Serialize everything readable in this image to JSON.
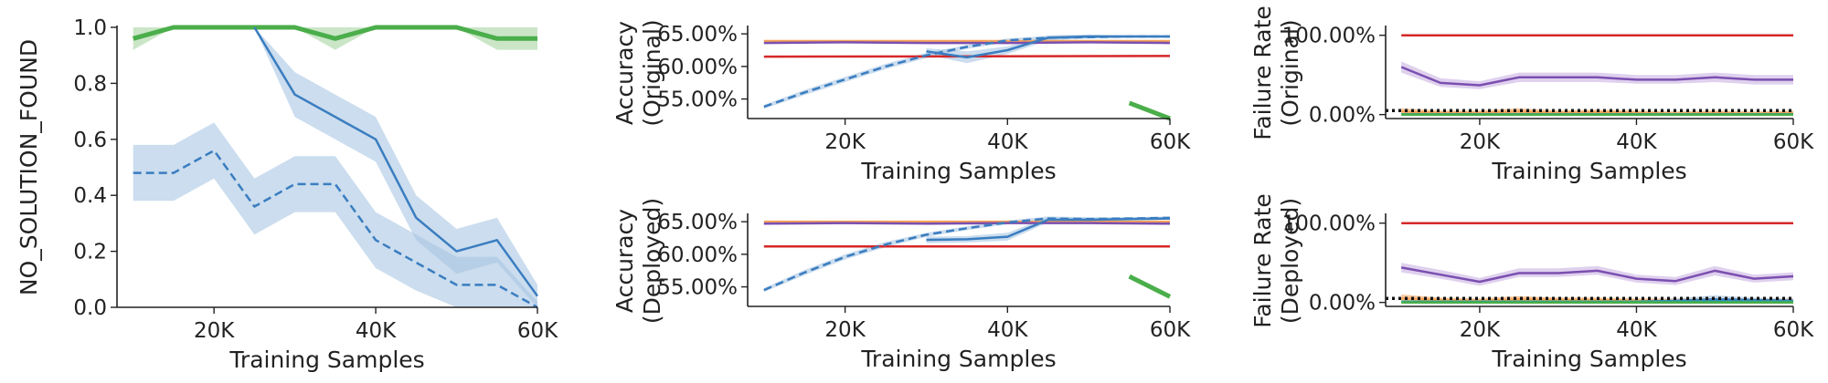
{
  "figure": {
    "background": "#ffffff"
  },
  "colors": {
    "blue": "#3a7dc0",
    "blue_band": "#a9c6e3",
    "green": "#4aae4a",
    "green_band": "#a6d6a1",
    "red": "#d62728",
    "purple": "#7b4fb0",
    "purple_band": "#c9b2e3",
    "orange": "#f4a259",
    "teal": "#2aa198"
  },
  "chart_data": [
    {
      "id": "p1",
      "type": "line",
      "xlabel": "Training Samples",
      "ylabel": "NO_SOLUTION_FOUND",
      "xlim": [
        8000,
        60000
      ],
      "ylim": [
        0,
        1.0
      ],
      "xticks": [
        20000,
        40000,
        60000
      ],
      "xtick_labels": [
        "20K",
        "40K",
        "60K"
      ],
      "yticks": [
        0,
        0.2,
        0.4,
        0.6,
        0.8,
        1.0
      ],
      "ytick_labels": [
        "0.0",
        "0.2",
        "0.4",
        "0.6",
        "0.8",
        "1.0"
      ],
      "series": [
        {
          "color_key": "green",
          "dash": "solid",
          "width": 5,
          "x": [
            10000,
            15000,
            20000,
            25000,
            30000,
            35000,
            40000,
            45000,
            50000,
            55000,
            60000
          ],
          "y": [
            0.96,
            1.0,
            1.0,
            1.0,
            1.0,
            0.96,
            1.0,
            1.0,
            1.0,
            0.96,
            0.96
          ],
          "band_lo": [
            0.92,
            1.0,
            1.0,
            1.0,
            1.0,
            0.92,
            1.0,
            1.0,
            1.0,
            0.92,
            0.92
          ],
          "band_hi": [
            1.0,
            1.0,
            1.0,
            1.0,
            1.0,
            1.0,
            1.0,
            1.0,
            1.0,
            1.0,
            1.0
          ]
        },
        {
          "color_key": "blue",
          "dash": "solid",
          "width": 2.5,
          "x": [
            25000,
            30000,
            35000,
            40000,
            45000,
            50000,
            55000,
            60000
          ],
          "y": [
            1.0,
            0.76,
            0.68,
            0.6,
            0.32,
            0.2,
            0.24,
            0.04
          ],
          "band_lo": [
            1.0,
            0.68,
            0.6,
            0.52,
            0.24,
            0.12,
            0.16,
            0.0
          ],
          "band_hi": [
            1.0,
            0.84,
            0.76,
            0.68,
            0.4,
            0.28,
            0.32,
            0.08
          ]
        },
        {
          "color_key": "blue",
          "dash": "dashed",
          "width": 2.5,
          "x": [
            10000,
            15000,
            20000,
            25000,
            30000,
            35000,
            40000,
            45000,
            50000,
            55000,
            60000
          ],
          "y": [
            0.48,
            0.48,
            0.56,
            0.36,
            0.44,
            0.44,
            0.24,
            0.16,
            0.08,
            0.08,
            0.0
          ],
          "band_lo": [
            0.38,
            0.38,
            0.46,
            0.26,
            0.34,
            0.34,
            0.14,
            0.06,
            0.0,
            0.0,
            0.0
          ],
          "band_hi": [
            0.58,
            0.58,
            0.66,
            0.46,
            0.54,
            0.54,
            0.34,
            0.26,
            0.18,
            0.18,
            0.02
          ]
        }
      ]
    },
    {
      "id": "p2",
      "type": "line",
      "xlabel": "Training Samples",
      "ylabel_lines": [
        "Accuracy",
        "(Original)"
      ],
      "xlim": [
        8000,
        60000
      ],
      "ylim": [
        52,
        66
      ],
      "xticks": [
        20000,
        40000,
        60000
      ],
      "xtick_labels": [
        "20K",
        "40K",
        "60K"
      ],
      "yticks": [
        55,
        60,
        65
      ],
      "ytick_labels": [
        "55.00%",
        "60.00%",
        "65.00%"
      ],
      "series": [
        {
          "color_key": "red",
          "dash": "solid",
          "width": 2.5,
          "x": [
            10000,
            60000
          ],
          "y": [
            61.5,
            61.6
          ]
        },
        {
          "color_key": "orange",
          "dash": "solid",
          "width": 2.5,
          "x": [
            10000,
            60000
          ],
          "y": [
            63.9,
            63.9
          ]
        },
        {
          "color_key": "purple",
          "dash": "solid",
          "width": 2.5,
          "x": [
            10000,
            20000,
            30000,
            40000,
            50000,
            60000
          ],
          "y": [
            63.6,
            63.7,
            63.6,
            63.6,
            63.7,
            63.6
          ]
        },
        {
          "color_key": "blue",
          "dash": "dashed",
          "width": 2.5,
          "x": [
            10000,
            15000,
            20000,
            25000,
            30000,
            35000,
            40000,
            45000,
            50000,
            55000,
            60000
          ],
          "y": [
            53.8,
            56.0,
            58.0,
            60.0,
            61.7,
            63.0,
            64.0,
            64.4,
            64.5,
            64.6,
            64.6
          ],
          "band_lo": [
            53.5,
            55.6,
            57.6,
            59.6,
            61.3,
            62.7,
            63.7,
            64.1,
            64.3,
            64.4,
            64.4
          ],
          "band_hi": [
            54.1,
            56.4,
            58.4,
            60.4,
            62.1,
            63.3,
            64.3,
            64.7,
            64.7,
            64.8,
            64.8
          ]
        },
        {
          "color_key": "blue",
          "dash": "solid",
          "width": 2.5,
          "x": [
            30000,
            35000,
            40000,
            45000,
            50000,
            55000,
            60000
          ],
          "y": [
            62.3,
            61.4,
            62.5,
            64.4,
            64.6,
            64.6,
            64.6
          ],
          "band_lo": [
            61.8,
            60.5,
            61.9,
            64.0,
            64.3,
            64.4,
            64.4
          ],
          "band_hi": [
            62.8,
            62.3,
            63.1,
            64.8,
            64.9,
            64.8,
            64.8
          ]
        },
        {
          "color_key": "green",
          "dash": "solid",
          "width": 5,
          "x": [
            55000,
            60000
          ],
          "y": [
            54.4,
            52.0
          ]
        }
      ]
    },
    {
      "id": "p3",
      "type": "line",
      "xlabel": "Training Samples",
      "ylabel_lines": [
        "Failure Rate",
        "(Original)"
      ],
      "xlim": [
        8000,
        60000
      ],
      "ylim": [
        -5,
        110
      ],
      "xticks": [
        20000,
        40000,
        60000
      ],
      "xtick_labels": [
        "20K",
        "40K",
        "60K"
      ],
      "yticks": [
        0,
        100
      ],
      "ytick_labels": [
        "0.00%",
        "100.00%"
      ],
      "series": [
        {
          "color_key": "red",
          "dash": "solid",
          "width": 2.5,
          "x": [
            10000,
            60000
          ],
          "y": [
            100,
            100
          ]
        },
        {
          "color_key": "purple",
          "dash": "solid",
          "width": 2.5,
          "x": [
            10000,
            15000,
            20000,
            25000,
            30000,
            35000,
            40000,
            45000,
            50000,
            55000,
            60000
          ],
          "y": [
            60,
            40,
            37,
            47,
            47,
            47,
            44,
            44,
            47,
            44,
            44
          ],
          "band_lo": [
            53,
            35,
            32,
            41,
            41,
            41,
            39,
            39,
            41,
            38,
            38
          ],
          "band_hi": [
            67,
            46,
            42,
            53,
            53,
            53,
            50,
            50,
            53,
            50,
            50
          ]
        },
        {
          "color_key": "orange",
          "dash": "solid",
          "width": 2.5,
          "x": [
            10000,
            15000,
            20000,
            25000,
            30000,
            35000,
            40000,
            45000,
            50000,
            55000,
            60000
          ],
          "y": [
            4,
            2,
            2,
            4,
            2,
            3,
            2,
            1,
            2,
            1,
            2
          ],
          "band_lo": [
            1,
            0,
            0,
            1,
            0,
            0,
            0,
            0,
            0,
            0,
            0
          ],
          "band_hi": [
            8,
            5,
            5,
            8,
            5,
            6,
            5,
            4,
            5,
            4,
            5
          ]
        },
        {
          "color_key": "teal",
          "dash": "solid",
          "width": 2.5,
          "x": [
            10000,
            20000,
            30000,
            40000,
            50000,
            60000
          ],
          "y": [
            0.5,
            0.5,
            0.5,
            0.5,
            0.5,
            0.5
          ]
        },
        {
          "color_key": "green",
          "dash": "solid",
          "width": 2.5,
          "x": [
            10000,
            20000,
            30000,
            40000,
            50000,
            60000
          ],
          "y": [
            0,
            0,
            0,
            0,
            0,
            0
          ]
        },
        {
          "color_key": "black",
          "dash": "dotted",
          "width": 3.5,
          "x": [
            8000,
            60000
          ],
          "y": [
            5,
            5
          ]
        }
      ]
    },
    {
      "id": "p4",
      "type": "line",
      "xlabel": "Training Samples",
      "ylabel_lines": [
        "Accuracy",
        "(Deployed)"
      ],
      "xlim": [
        8000,
        60000
      ],
      "ylim": [
        52,
        66
      ],
      "xticks": [
        20000,
        40000,
        60000
      ],
      "xtick_labels": [
        "20K",
        "40K",
        "60K"
      ],
      "yticks": [
        55,
        60,
        65
      ],
      "ytick_labels": [
        "55.00%",
        "60.00%",
        "65.00%"
      ],
      "series": [
        {
          "color_key": "red",
          "dash": "solid",
          "width": 2.5,
          "x": [
            10000,
            60000
          ],
          "y": [
            61.2,
            61.2
          ]
        },
        {
          "color_key": "orange",
          "dash": "solid",
          "width": 2.5,
          "x": [
            10000,
            60000
          ],
          "y": [
            65.0,
            65.0
          ]
        },
        {
          "color_key": "purple",
          "dash": "solid",
          "width": 2.5,
          "x": [
            10000,
            20000,
            30000,
            40000,
            50000,
            60000
          ],
          "y": [
            64.7,
            64.8,
            64.7,
            64.8,
            64.8,
            64.7
          ]
        },
        {
          "color_key": "blue",
          "dash": "dashed",
          "width": 2.5,
          "x": [
            10000,
            15000,
            20000,
            25000,
            30000,
            35000,
            40000,
            45000,
            50000,
            55000,
            60000
          ],
          "y": [
            54.5,
            57.2,
            59.6,
            61.5,
            63.0,
            64.0,
            64.9,
            65.5,
            65.4,
            65.5,
            65.6
          ],
          "band_lo": [
            54.2,
            56.8,
            59.2,
            61.1,
            62.7,
            63.7,
            64.6,
            65.2,
            65.1,
            65.3,
            65.4
          ],
          "band_hi": [
            54.8,
            57.6,
            60.0,
            61.9,
            63.3,
            64.3,
            65.2,
            65.8,
            65.7,
            65.7,
            65.8
          ]
        },
        {
          "color_key": "blue",
          "dash": "solid",
          "width": 2.5,
          "x": [
            30000,
            35000,
            40000,
            45000,
            50000,
            55000,
            60000
          ],
          "y": [
            62.2,
            62.3,
            62.7,
            65.3,
            65.3,
            65.4,
            65.5
          ],
          "band_lo": [
            61.7,
            61.8,
            62.1,
            64.9,
            65.0,
            65.2,
            65.3
          ],
          "band_hi": [
            62.7,
            62.8,
            63.3,
            65.7,
            65.6,
            65.6,
            65.7
          ]
        },
        {
          "color_key": "green",
          "dash": "solid",
          "width": 5,
          "x": [
            55000,
            60000
          ],
          "y": [
            56.6,
            53.5
          ]
        }
      ]
    },
    {
      "id": "p5",
      "type": "line",
      "xlabel": "Training Samples",
      "ylabel_lines": [
        "Failure Rate",
        "(Deployed)"
      ],
      "xlim": [
        8000,
        60000
      ],
      "ylim": [
        -5,
        110
      ],
      "xticks": [
        20000,
        40000,
        60000
      ],
      "xtick_labels": [
        "20K",
        "40K",
        "60K"
      ],
      "yticks": [
        0,
        100
      ],
      "ytick_labels": [
        "0.00%",
        "100.00%"
      ],
      "series": [
        {
          "color_key": "red",
          "dash": "solid",
          "width": 2.5,
          "x": [
            10000,
            60000
          ],
          "y": [
            100,
            100
          ]
        },
        {
          "color_key": "purple",
          "dash": "solid",
          "width": 2.5,
          "x": [
            10000,
            15000,
            20000,
            25000,
            30000,
            35000,
            40000,
            45000,
            50000,
            55000,
            60000
          ],
          "y": [
            44,
            35,
            26,
            37,
            37,
            40,
            30,
            27,
            40,
            30,
            33
          ],
          "band_lo": [
            38,
            30,
            21,
            32,
            32,
            35,
            25,
            22,
            34,
            25,
            28
          ],
          "band_hi": [
            50,
            41,
            31,
            43,
            43,
            46,
            35,
            32,
            46,
            35,
            38
          ]
        },
        {
          "color_key": "orange",
          "dash": "solid",
          "width": 2.5,
          "x": [
            10000,
            15000,
            20000,
            25000,
            30000,
            35000,
            40000,
            45000,
            50000,
            55000,
            60000
          ],
          "y": [
            5,
            3,
            2,
            4,
            3,
            3,
            2,
            2,
            3,
            2,
            2
          ],
          "band_lo": [
            1,
            0,
            0,
            1,
            0,
            0,
            0,
            0,
            0,
            0,
            0
          ],
          "band_hi": [
            10,
            6,
            5,
            8,
            6,
            6,
            5,
            5,
            6,
            5,
            5
          ]
        },
        {
          "color_key": "blue",
          "dash": "solid",
          "width": 2.5,
          "x": [
            40000,
            45000,
            50000,
            55000,
            60000
          ],
          "y": [
            1,
            2,
            4,
            3,
            2
          ],
          "band_lo": [
            0,
            0,
            1,
            0,
            0
          ],
          "band_hi": [
            3,
            5,
            9,
            6,
            5
          ]
        },
        {
          "color_key": "teal",
          "dash": "solid",
          "width": 2.5,
          "x": [
            10000,
            20000,
            30000,
            40000,
            50000,
            60000
          ],
          "y": [
            1,
            1,
            1,
            1,
            1,
            1
          ]
        },
        {
          "color_key": "green",
          "dash": "solid",
          "width": 2.5,
          "x": [
            10000,
            20000,
            30000,
            40000,
            50000,
            60000
          ],
          "y": [
            0,
            0,
            0,
            0,
            0,
            0
          ]
        },
        {
          "color_key": "black",
          "dash": "dotted",
          "width": 3.5,
          "x": [
            8000,
            60000
          ],
          "y": [
            5,
            5
          ]
        }
      ]
    }
  ]
}
